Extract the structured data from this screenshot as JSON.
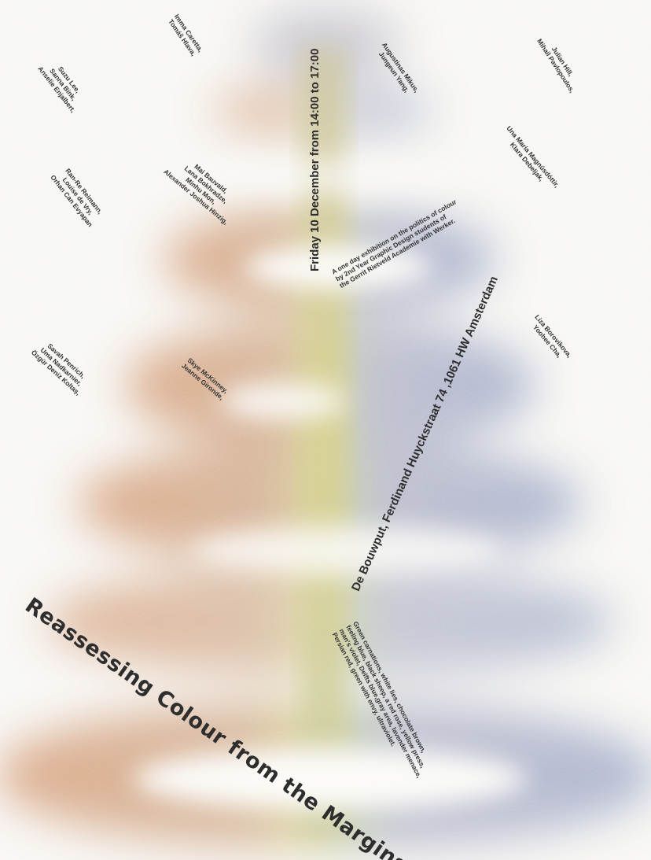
{
  "poster": {
    "title": "Reassessing Colour from the Margins",
    "date_line": "Friday 10 December from 14:00 to 17:00",
    "address_line": "De Bouwput, Ferdinand Huyckstraat 74 ,1061 HW Amsterdam",
    "description": "A one day exhibition on the politics of colour\nby 2nd Year Graphic Design students of\nthe Gerrit Rietveld Academie with Werker.",
    "colour_words": "Green carnations, white lies, chocolate brown,\nfeeling blue, black sheep, a red rose, yellow press,\nman's violet, Delfts blue,gray area, lavender menace,\nPersian red, green with envy, ultraviolet.",
    "name_groups": [
      "Suzu Lee,\nSanna Bink,\nAnselie Enjalbert,",
      "Imma Caretta,\nTomáš Hlava,",
      "Augustinas Mikus,\nJungeun Yang,",
      "Julian Hill,\nMihail Pavlopoulos,",
      "Ran-Re Reimann,\nLouise de Vry,\nOrhan Can Evyapan",
      "Mai Bauvald,\nLana Bokhradze,\nMinhu Mon,\nAlexander Joshua Hinzig,",
      "Una María Magnúsdóttir,\nKlara Debeljak,",
      "Liza Borovikova,\nYoohee Cha,",
      "Savah Penrich,\nUma Nadkarnier,\nÖzgür Deniz Koltaş,",
      "Skye McKinney,\nJeanne Gironde,"
    ]
  },
  "colors": {
    "background": "#f8f7f4",
    "text": "#2e2e2e",
    "orange": "#d79a6c",
    "blue": "#9aa6c4",
    "lavender": "#b9a9cf",
    "yellow": "#d9cf8a",
    "green": "#b7c59a"
  }
}
